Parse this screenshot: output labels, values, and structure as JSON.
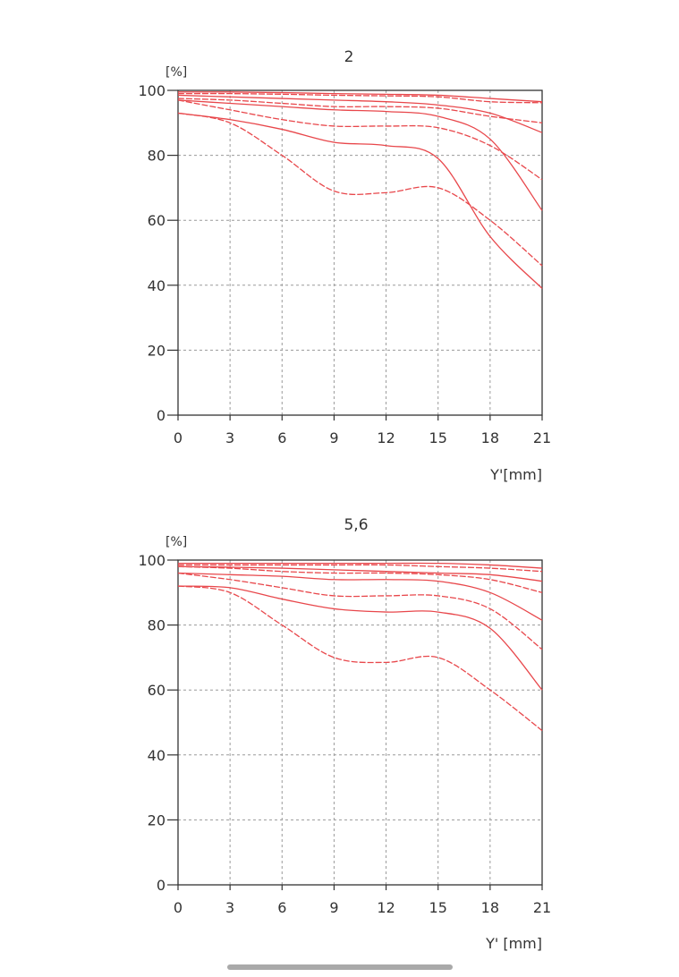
{
  "chart_data": [
    {
      "type": "line",
      "title": "2",
      "ylabel": "[%]",
      "xlabel": "Y'[mm]",
      "xlim": [
        0,
        21
      ],
      "ylim": [
        0,
        100
      ],
      "xticks": [
        "0",
        "3",
        "6",
        "9",
        "12",
        "15",
        "18",
        "21"
      ],
      "yticks": [
        "0",
        "20",
        "40",
        "60",
        "80",
        "100"
      ],
      "grid": true,
      "line_color": "#e8474b",
      "x": [
        0,
        3,
        6,
        9,
        12,
        15,
        18,
        21
      ],
      "series": [
        {
          "name": "solid-1",
          "style": "solid",
          "values": [
            99.5,
            99.5,
            99.3,
            99,
            98.8,
            98.5,
            97.5,
            96.5
          ]
        },
        {
          "name": "dashed-1",
          "style": "dashed",
          "values": [
            99,
            99,
            98.8,
            98.5,
            98.3,
            98,
            96.5,
            96.2
          ]
        },
        {
          "name": "solid-2",
          "style": "solid",
          "values": [
            98.5,
            98,
            97.5,
            97,
            96.5,
            95.5,
            93,
            87
          ]
        },
        {
          "name": "dashed-2",
          "style": "dashed",
          "values": [
            97.5,
            97,
            96,
            95,
            95,
            94.5,
            92,
            90
          ]
        },
        {
          "name": "solid-3",
          "style": "solid",
          "values": [
            97,
            96,
            95,
            94,
            93.5,
            92,
            85,
            63
          ]
        },
        {
          "name": "dashed-3",
          "style": "dashed",
          "values": [
            97,
            94,
            91,
            89,
            89,
            88.5,
            83,
            72.5
          ]
        },
        {
          "name": "solid-4",
          "style": "solid",
          "values": [
            93,
            91,
            88,
            84,
            83,
            79,
            55,
            39
          ]
        },
        {
          "name": "dashed-4",
          "style": "dashed",
          "values": [
            93,
            90,
            80,
            69,
            68.5,
            70,
            60,
            46
          ]
        }
      ]
    },
    {
      "type": "line",
      "title": "5,6",
      "ylabel": "[%]",
      "xlabel": "Y' [mm]",
      "xlim": [
        0,
        21
      ],
      "ylim": [
        0,
        100
      ],
      "xticks": [
        "0",
        "3",
        "6",
        "9",
        "12",
        "15",
        "18",
        "21"
      ],
      "yticks": [
        "0",
        "20",
        "40",
        "60",
        "80",
        "100"
      ],
      "grid": true,
      "line_color": "#e8474b",
      "x": [
        0,
        3,
        6,
        9,
        12,
        15,
        18,
        21
      ],
      "series": [
        {
          "name": "solid-1",
          "style": "solid",
          "values": [
            99,
            99,
            99,
            99,
            99,
            99,
            98.5,
            97.5
          ]
        },
        {
          "name": "dashed-1",
          "style": "dashed",
          "values": [
            98.5,
            98.5,
            98.5,
            98.5,
            98.5,
            98,
            97.5,
            96.5
          ]
        },
        {
          "name": "solid-2",
          "style": "solid",
          "values": [
            98,
            97.8,
            97.5,
            97,
            96.5,
            96,
            95.5,
            93.5
          ]
        },
        {
          "name": "dashed-2",
          "style": "dashed",
          "values": [
            98,
            97.5,
            96.5,
            96,
            96,
            95.5,
            94,
            90
          ]
        },
        {
          "name": "solid-3",
          "style": "solid",
          "values": [
            96,
            95.5,
            95,
            94,
            94,
            93.5,
            90,
            81.5
          ]
        },
        {
          "name": "dashed-3",
          "style": "dashed",
          "values": [
            96,
            94,
            91.5,
            89,
            89,
            89,
            85,
            72.5
          ]
        },
        {
          "name": "solid-4",
          "style": "solid",
          "values": [
            92,
            91.5,
            88,
            85,
            84,
            84,
            79,
            60
          ]
        },
        {
          "name": "dashed-4",
          "style": "dashed",
          "values": [
            92,
            90,
            80,
            70,
            68.5,
            70,
            60,
            47.5
          ]
        }
      ]
    }
  ]
}
